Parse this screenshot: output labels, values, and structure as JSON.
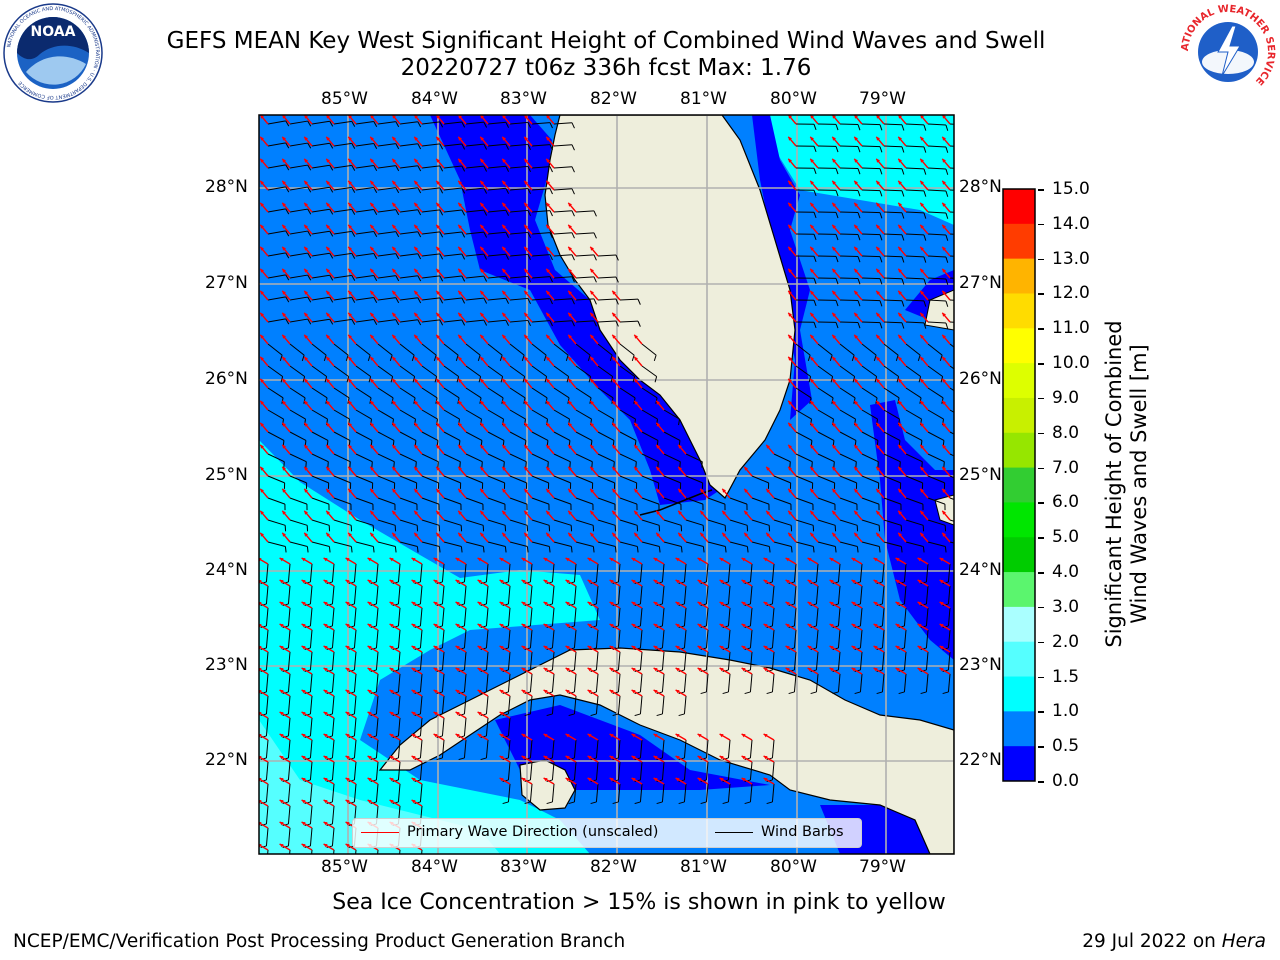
{
  "title_line1": "GEFS MEAN Key West Significant Height of Combined Wind Waves and Swell",
  "title_line2": "20220727 t06z 336h fcst   Max: 1.76",
  "lon_labels": [
    "85°W",
    "84°W",
    "83°W",
    "82°W",
    "81°W",
    "80°W",
    "79°W"
  ],
  "lat_labels": [
    "28°N",
    "27°N",
    "26°N",
    "25°N",
    "24°N",
    "23°N",
    "22°N"
  ],
  "colorbar": {
    "label_line1": "Significant Height of Combined",
    "label_line2": "Wind Waves and Swell [m]",
    "ticks": [
      "15.0",
      "14.0",
      "13.0",
      "12.0",
      "11.0",
      "10.0",
      "9.0",
      "8.0",
      "7.0",
      "6.0",
      "5.0",
      "4.0",
      "3.0",
      "2.0",
      "1.5",
      "1.0",
      "0.5",
      "0.0"
    ],
    "colors": [
      "#ff0000",
      "#ff3c00",
      "#ff6400",
      "#ff8c00",
      "#ffb400",
      "#ffdc00",
      "#ffff00",
      "#ddff00",
      "#c8f000",
      "#96e600",
      "#32cd32",
      "#00e600",
      "#00cc00",
      "#5bf56e",
      "#aaffff",
      "#55ffff",
      "#00ffff",
      "#0080ff",
      "#0000ff"
    ]
  },
  "legend": {
    "wave_label": "Primary Wave Direction (unscaled)",
    "wind_label": "Wind Barbs",
    "wave_color": "#ff0000",
    "wind_color": "#000000"
  },
  "subtitle": "Sea Ice Concentration > 15% is shown in pink to yellow",
  "footer_left": "NCEP/EMC/Verification Post Processing Product Generation Branch",
  "footer_right_date": "29 Jul 2022 on ",
  "footer_right_host": "Hera",
  "logo_noaa_text": "NOAA",
  "logo_noaa_ring": "NATIONAL OCEANIC AND ATMOSPHERIC ADMINISTRATION · U.S. DEPARTMENT OF COMMERCE",
  "logo_nws_ring": "NATIONAL WEATHER SERVICE",
  "colors": {
    "land": "#eeeedc",
    "sea_dark": "#0000ff",
    "sea_mid": "#0080ff",
    "sea_light": "#00ffff",
    "sea_lighter": "#55ffff",
    "grid": "#b0b0b0"
  }
}
